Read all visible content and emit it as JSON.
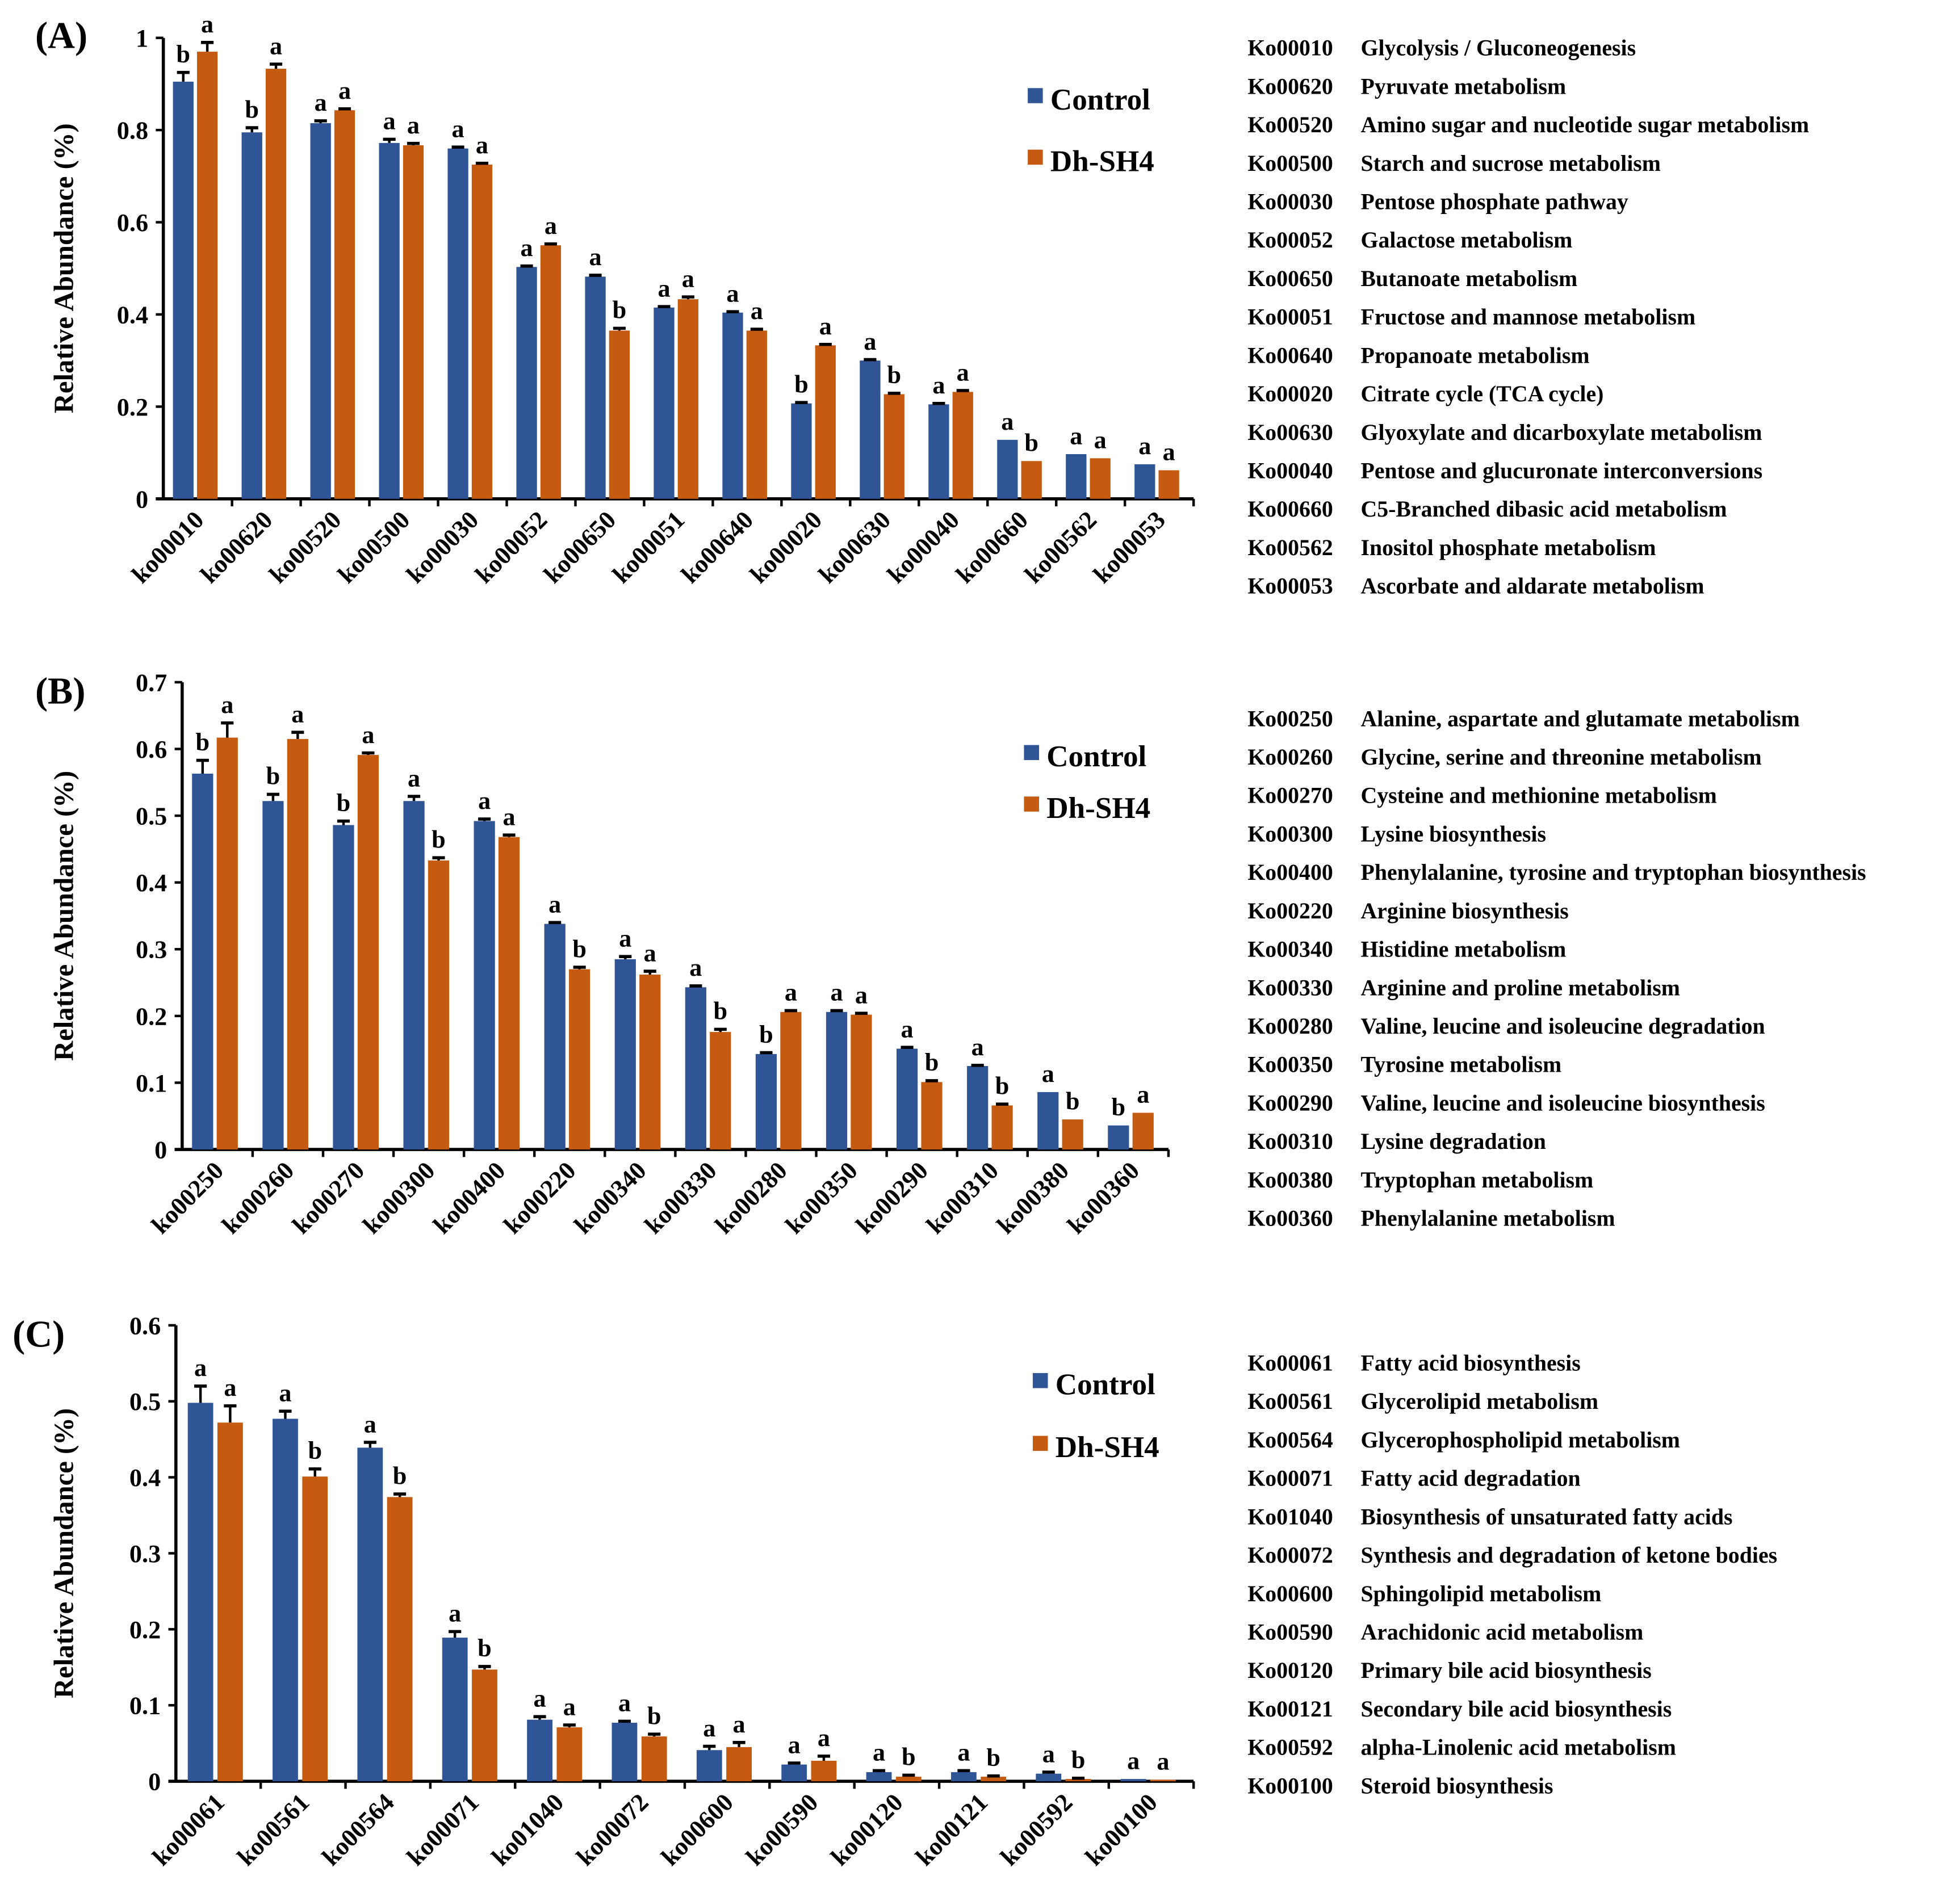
{
  "colors": {
    "control": "#2F5597",
    "dh": "#C55A11",
    "axis": "#000000"
  },
  "chart_data": [
    {
      "type": "bar",
      "panel_label": "(A)",
      "ylabel": "Relative Abundance (%)",
      "ylim": [
        0,
        1
      ],
      "yticks": [
        0,
        0.2,
        0.4,
        0.6,
        0.8,
        1
      ],
      "ytick_labels": [
        "0",
        "0.2",
        "0.4",
        "0.6",
        "0.8",
        "1"
      ],
      "legend": [
        "Control",
        "Dh-SH4"
      ],
      "legend_position": "top-right",
      "categories": [
        "ko00010",
        "ko00620",
        "ko00520",
        "ko00500",
        "ko00030",
        "ko00052",
        "ko00650",
        "ko00051",
        "ko00640",
        "ko00020",
        "ko00630",
        "ko00040",
        "ko00660",
        "ko00562",
        "ko00053"
      ],
      "series": [
        {
          "name": "Control",
          "values": [
            0.905,
            0.795,
            0.815,
            0.772,
            0.76,
            0.503,
            0.482,
            0.415,
            0.404,
            0.207,
            0.3,
            0.205,
            0.128,
            0.097,
            0.075
          ],
          "errors": [
            0.02,
            0.01,
            0.005,
            0.008,
            0.003,
            0.002,
            0.003,
            0.002,
            0.002,
            0.002,
            0.002,
            0.002,
            0,
            0,
            0
          ],
          "letters": [
            "b",
            "b",
            "a",
            "a",
            "a",
            "a",
            "a",
            "a",
            "a",
            "b",
            "a",
            "a",
            "a",
            "a",
            "a"
          ]
        },
        {
          "name": "Dh-SH4",
          "values": [
            0.97,
            0.933,
            0.843,
            0.767,
            0.725,
            0.55,
            0.365,
            0.433,
            0.365,
            0.333,
            0.227,
            0.232,
            0.082,
            0.088,
            0.062
          ],
          "errors": [
            0.02,
            0.01,
            0.003,
            0.004,
            0.003,
            0.003,
            0.005,
            0.005,
            0.003,
            0.002,
            0.002,
            0.003,
            0,
            0,
            0
          ],
          "letters": [
            "a",
            "a",
            "a",
            "a",
            "a",
            "a",
            "b",
            "a",
            "a",
            "a",
            "b",
            "a",
            "b",
            "a",
            "a"
          ]
        }
      ],
      "key_list": [
        [
          "Ko00010",
          "Glycolysis / Gluconeogenesis"
        ],
        [
          "Ko00620",
          "Pyruvate metabolism"
        ],
        [
          "Ko00520",
          "Amino sugar and nucleotide sugar metabolism"
        ],
        [
          "Ko00500",
          "Starch and sucrose metabolism"
        ],
        [
          "Ko00030",
          "Pentose phosphate pathway"
        ],
        [
          "Ko00052",
          "Galactose metabolism"
        ],
        [
          "Ko00650",
          "Butanoate metabolism"
        ],
        [
          "Ko00051",
          "Fructose and mannose metabolism"
        ],
        [
          "Ko00640",
          "Propanoate metabolism"
        ],
        [
          "Ko00020",
          "Citrate cycle (TCA cycle)"
        ],
        [
          "Ko00630",
          "Glyoxylate and dicarboxylate metabolism"
        ],
        [
          "Ko00040",
          "Pentose and glucuronate interconversions"
        ],
        [
          "Ko00660",
          "C5-Branched dibasic acid metabolism"
        ],
        [
          "Ko00562",
          "Inositol phosphate metabolism"
        ],
        [
          "Ko00053",
          "Ascorbate and aldarate metabolism"
        ]
      ]
    },
    {
      "type": "bar",
      "panel_label": "(B)",
      "ylabel": "Relative Abundance (%)",
      "ylim": [
        0,
        0.7
      ],
      "yticks": [
        0,
        0.1,
        0.2,
        0.3,
        0.4,
        0.5,
        0.6,
        0.7
      ],
      "ytick_labels": [
        "0",
        "0.1",
        "0.2",
        "0.3",
        "0.4",
        "0.5",
        "0.6",
        "0.7"
      ],
      "legend": [
        "Control",
        "Dh-SH4"
      ],
      "legend_position": "top-right",
      "categories": [
        "ko00250",
        "ko00260",
        "ko00270",
        "ko00300",
        "ko00400",
        "ko00220",
        "ko00340",
        "ko00330",
        "ko00280",
        "ko00350",
        "ko00290",
        "ko00310",
        "ko00380",
        "ko00360"
      ],
      "series": [
        {
          "name": "Control",
          "values": [
            0.563,
            0.522,
            0.486,
            0.522,
            0.492,
            0.338,
            0.285,
            0.243,
            0.143,
            0.206,
            0.151,
            0.125,
            0.086,
            0.036
          ],
          "errors": [
            0.02,
            0.01,
            0.006,
            0.007,
            0.003,
            0.002,
            0.004,
            0.002,
            0.002,
            0.002,
            0.002,
            0.001,
            0,
            0
          ],
          "letters": [
            "b",
            "b",
            "b",
            "a",
            "a",
            "a",
            "a",
            "a",
            "b",
            "a",
            "a",
            "a",
            "a",
            "b"
          ]
        },
        {
          "name": "Dh-SH4",
          "values": [
            0.617,
            0.615,
            0.591,
            0.433,
            0.468,
            0.27,
            0.262,
            0.176,
            0.206,
            0.202,
            0.101,
            0.066,
            0.045,
            0.055
          ],
          "errors": [
            0.022,
            0.01,
            0.003,
            0.004,
            0.003,
            0.003,
            0.005,
            0.004,
            0.002,
            0.002,
            0.002,
            0.002,
            0,
            0
          ],
          "letters": [
            "a",
            "a",
            "a",
            "b",
            "a",
            "b",
            "a",
            "b",
            "a",
            "a",
            "b",
            "b",
            "b",
            "a"
          ]
        }
      ],
      "key_list": [
        [
          "Ko00250",
          "Alanine, aspartate and glutamate metabolism"
        ],
        [
          "Ko00260",
          "Glycine, serine and threonine metabolism"
        ],
        [
          "Ko00270",
          "Cysteine and methionine metabolism"
        ],
        [
          "Ko00300",
          "Lysine biosynthesis"
        ],
        [
          "Ko00400",
          "Phenylalanine, tyrosine and tryptophan biosynthesis"
        ],
        [
          "Ko00220",
          "Arginine biosynthesis"
        ],
        [
          "Ko00340",
          "Histidine metabolism"
        ],
        [
          "Ko00330",
          "Arginine and proline metabolism"
        ],
        [
          "Ko00280",
          "Valine, leucine and isoleucine degradation"
        ],
        [
          "Ko00350",
          "Tyrosine metabolism"
        ],
        [
          "Ko00290",
          "Valine, leucine and isoleucine biosynthesis"
        ],
        [
          "Ko00310",
          "Lysine degradation"
        ],
        [
          "Ko00380",
          "Tryptophan metabolism"
        ],
        [
          "Ko00360",
          "Phenylalanine metabolism"
        ]
      ]
    },
    {
      "type": "bar",
      "panel_label": "(C)",
      "ylabel": "Relative Abundance (%)",
      "ylim": [
        0,
        0.6
      ],
      "yticks": [
        0,
        0.1,
        0.2,
        0.3,
        0.4,
        0.5,
        0.6
      ],
      "ytick_labels": [
        "0",
        "0.1",
        "0.2",
        "0.3",
        "0.4",
        "0.5",
        "0.6"
      ],
      "legend": [
        "Control",
        "Dh-SH4"
      ],
      "legend_position": "top-right",
      "categories": [
        "ko00061",
        "ko00561",
        "ko00564",
        "ko00071",
        "ko01040",
        "ko00072",
        "ko00600",
        "ko00590",
        "ko00120",
        "ko00121",
        "ko00592",
        "ko00100"
      ],
      "series": [
        {
          "name": "Control",
          "values": [
            0.498,
            0.477,
            0.439,
            0.189,
            0.081,
            0.077,
            0.041,
            0.022,
            0.012,
            0.012,
            0.01,
            0.003
          ],
          "errors": [
            0.022,
            0.01,
            0.007,
            0.008,
            0.004,
            0.002,
            0.005,
            0.002,
            0.002,
            0.002,
            0.002,
            0
          ],
          "letters": [
            "a",
            "a",
            "a",
            "a",
            "a",
            "a",
            "a",
            "a",
            "a",
            "a",
            "a",
            "a"
          ]
        },
        {
          "name": "Dh-SH4",
          "values": [
            0.472,
            0.401,
            0.374,
            0.147,
            0.071,
            0.059,
            0.045,
            0.027,
            0.006,
            0.006,
            0.003,
            0.002
          ],
          "errors": [
            0.022,
            0.01,
            0.004,
            0.004,
            0.003,
            0.003,
            0.006,
            0.006,
            0.002,
            0.001,
            0.001,
            0
          ],
          "letters": [
            "a",
            "b",
            "b",
            "b",
            "a",
            "b",
            "a",
            "a",
            "b",
            "b",
            "b",
            "a"
          ]
        }
      ],
      "key_list": [
        [
          "Ko00061",
          "Fatty acid biosynthesis"
        ],
        [
          "Ko00561",
          "Glycerolipid metabolism"
        ],
        [
          "Ko00564",
          "Glycerophospholipid metabolism"
        ],
        [
          "Ko00071",
          "Fatty acid degradation"
        ],
        [
          "Ko01040",
          "Biosynthesis of unsaturated fatty acids"
        ],
        [
          "Ko00072",
          "Synthesis and degradation of ketone bodies"
        ],
        [
          "Ko00600",
          "Sphingolipid metabolism"
        ],
        [
          "Ko00590",
          "Arachidonic acid metabolism"
        ],
        [
          "Ko00120",
          "Primary bile acid biosynthesis"
        ],
        [
          "Ko00121",
          "Secondary bile acid biosynthesis"
        ],
        [
          "Ko00592",
          "alpha-Linolenic acid metabolism"
        ],
        [
          "Ko00100",
          "Steroid biosynthesis"
        ]
      ]
    }
  ]
}
